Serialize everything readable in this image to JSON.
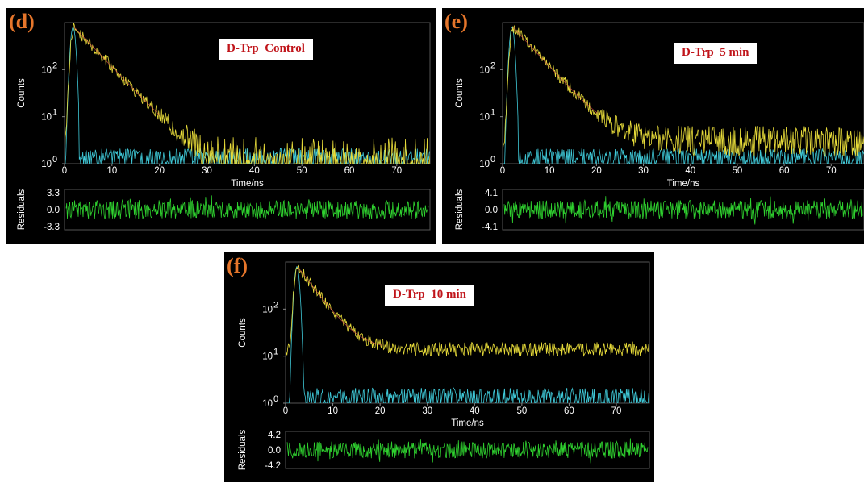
{
  "colors": {
    "decay": "#e8dc3a",
    "irf": "#3fc9d8",
    "fit": "#e05050",
    "residual": "#2fd12f",
    "panel_label": "#e6762b",
    "badge_text": "#c0141a"
  },
  "chart_data": [
    {
      "type": "line",
      "panel_label": "(d)",
      "title": "D-Trp  Control",
      "xlabel": "Time/ns",
      "ylabel": "Counts",
      "y_scale": "log",
      "xlim": [
        0,
        77
      ],
      "ylim": [
        1,
        1000
      ],
      "x_ticks": [
        "0",
        "10",
        "20",
        "30",
        "40",
        "50",
        "60",
        "70"
      ],
      "y_ticks": [
        "10",
        "10",
        "10"
      ],
      "y_tick_exponents": [
        "0",
        "1",
        "2"
      ],
      "series": [
        {
          "values": {
            "peak_time": 2.0,
            "peak_counts": 800,
            "decay_tau": 4.1,
            "background": 1.0
          }
        },
        {
          "values": {
            "peak_time": 1.8,
            "peak_counts": 800,
            "width": 0.6,
            "noise_floor": 1.0
          }
        }
      ],
      "residuals": {
        "ylabel": "Residuals",
        "y_ticks": [
          "3.3",
          "0.0",
          "-3.3"
        ],
        "ylim": [
          -3.3,
          3.3
        ]
      }
    },
    {
      "type": "line",
      "panel_label": "(e)",
      "title": "D-Trp  5 min",
      "xlabel": "Time/ns",
      "ylabel": "Counts",
      "y_scale": "log",
      "xlim": [
        0,
        77
      ],
      "ylim": [
        1,
        1000
      ],
      "x_ticks": [
        "0",
        "10",
        "20",
        "30",
        "40",
        "50",
        "60",
        "70"
      ],
      "y_ticks": [
        "10",
        "10",
        "10"
      ],
      "y_tick_exponents": [
        "0",
        "1",
        "2"
      ],
      "series": [
        {
          "values": {
            "peak_time": 2.2,
            "peak_counts": 800,
            "decay_tau": 4.0,
            "background": 3.0
          }
        },
        {
          "values": {
            "peak_time": 2.0,
            "peak_counts": 800,
            "width": 0.6,
            "noise_floor": 1.0
          }
        }
      ],
      "residuals": {
        "ylabel": "Residuals",
        "y_ticks": [
          "4.1",
          "0.0",
          "-4.1"
        ],
        "ylim": [
          -4.1,
          4.1
        ]
      }
    },
    {
      "type": "line",
      "panel_label": "(f)",
      "title": "D-Trp  10 min",
      "xlabel": "Time/ns",
      "ylabel": "Counts",
      "y_scale": "log",
      "xlim": [
        0,
        77
      ],
      "ylim": [
        1,
        1000
      ],
      "x_ticks": [
        "0",
        "10",
        "20",
        "30",
        "40",
        "50",
        "60",
        "70"
      ],
      "y_ticks": [
        "10",
        "10",
        "10"
      ],
      "y_tick_exponents": [
        "0",
        "1",
        "2"
      ],
      "series": [
        {
          "values": {
            "peak_time": 2.5,
            "peak_counts": 800,
            "decay_tau": 3.2,
            "background": 14.0
          }
        },
        {
          "values": {
            "peak_time": 2.4,
            "peak_counts": 800,
            "width": 0.6,
            "noise_floor": 1.0
          }
        }
      ],
      "residuals": {
        "ylabel": "Residuals",
        "y_ticks": [
          "4.2",
          "0.0",
          "-4.2"
        ],
        "ylim": [
          -4.2,
          4.2
        ]
      }
    }
  ]
}
